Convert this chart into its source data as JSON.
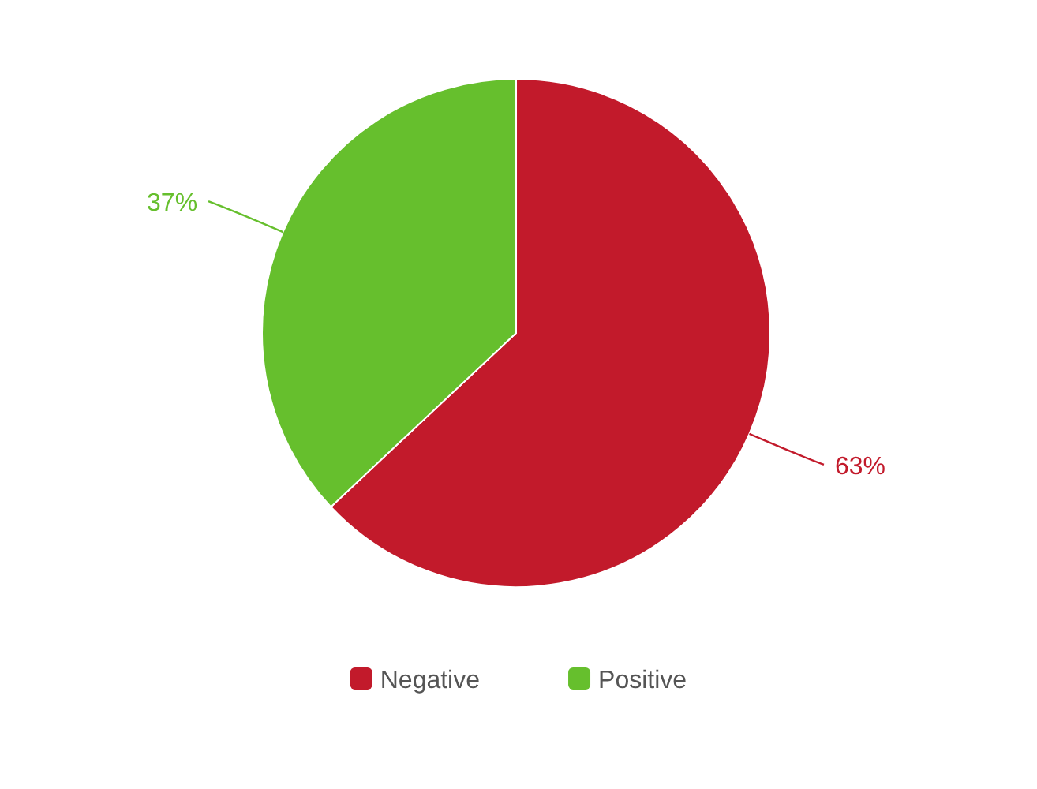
{
  "chart_data": {
    "type": "pie",
    "categories": [
      "Negative",
      "Positive"
    ],
    "values": [
      63,
      37
    ],
    "colors": [
      "#c21a2b",
      "#66bf2d"
    ],
    "value_labels": [
      "63%",
      "37%"
    ],
    "legend": "bottom"
  }
}
